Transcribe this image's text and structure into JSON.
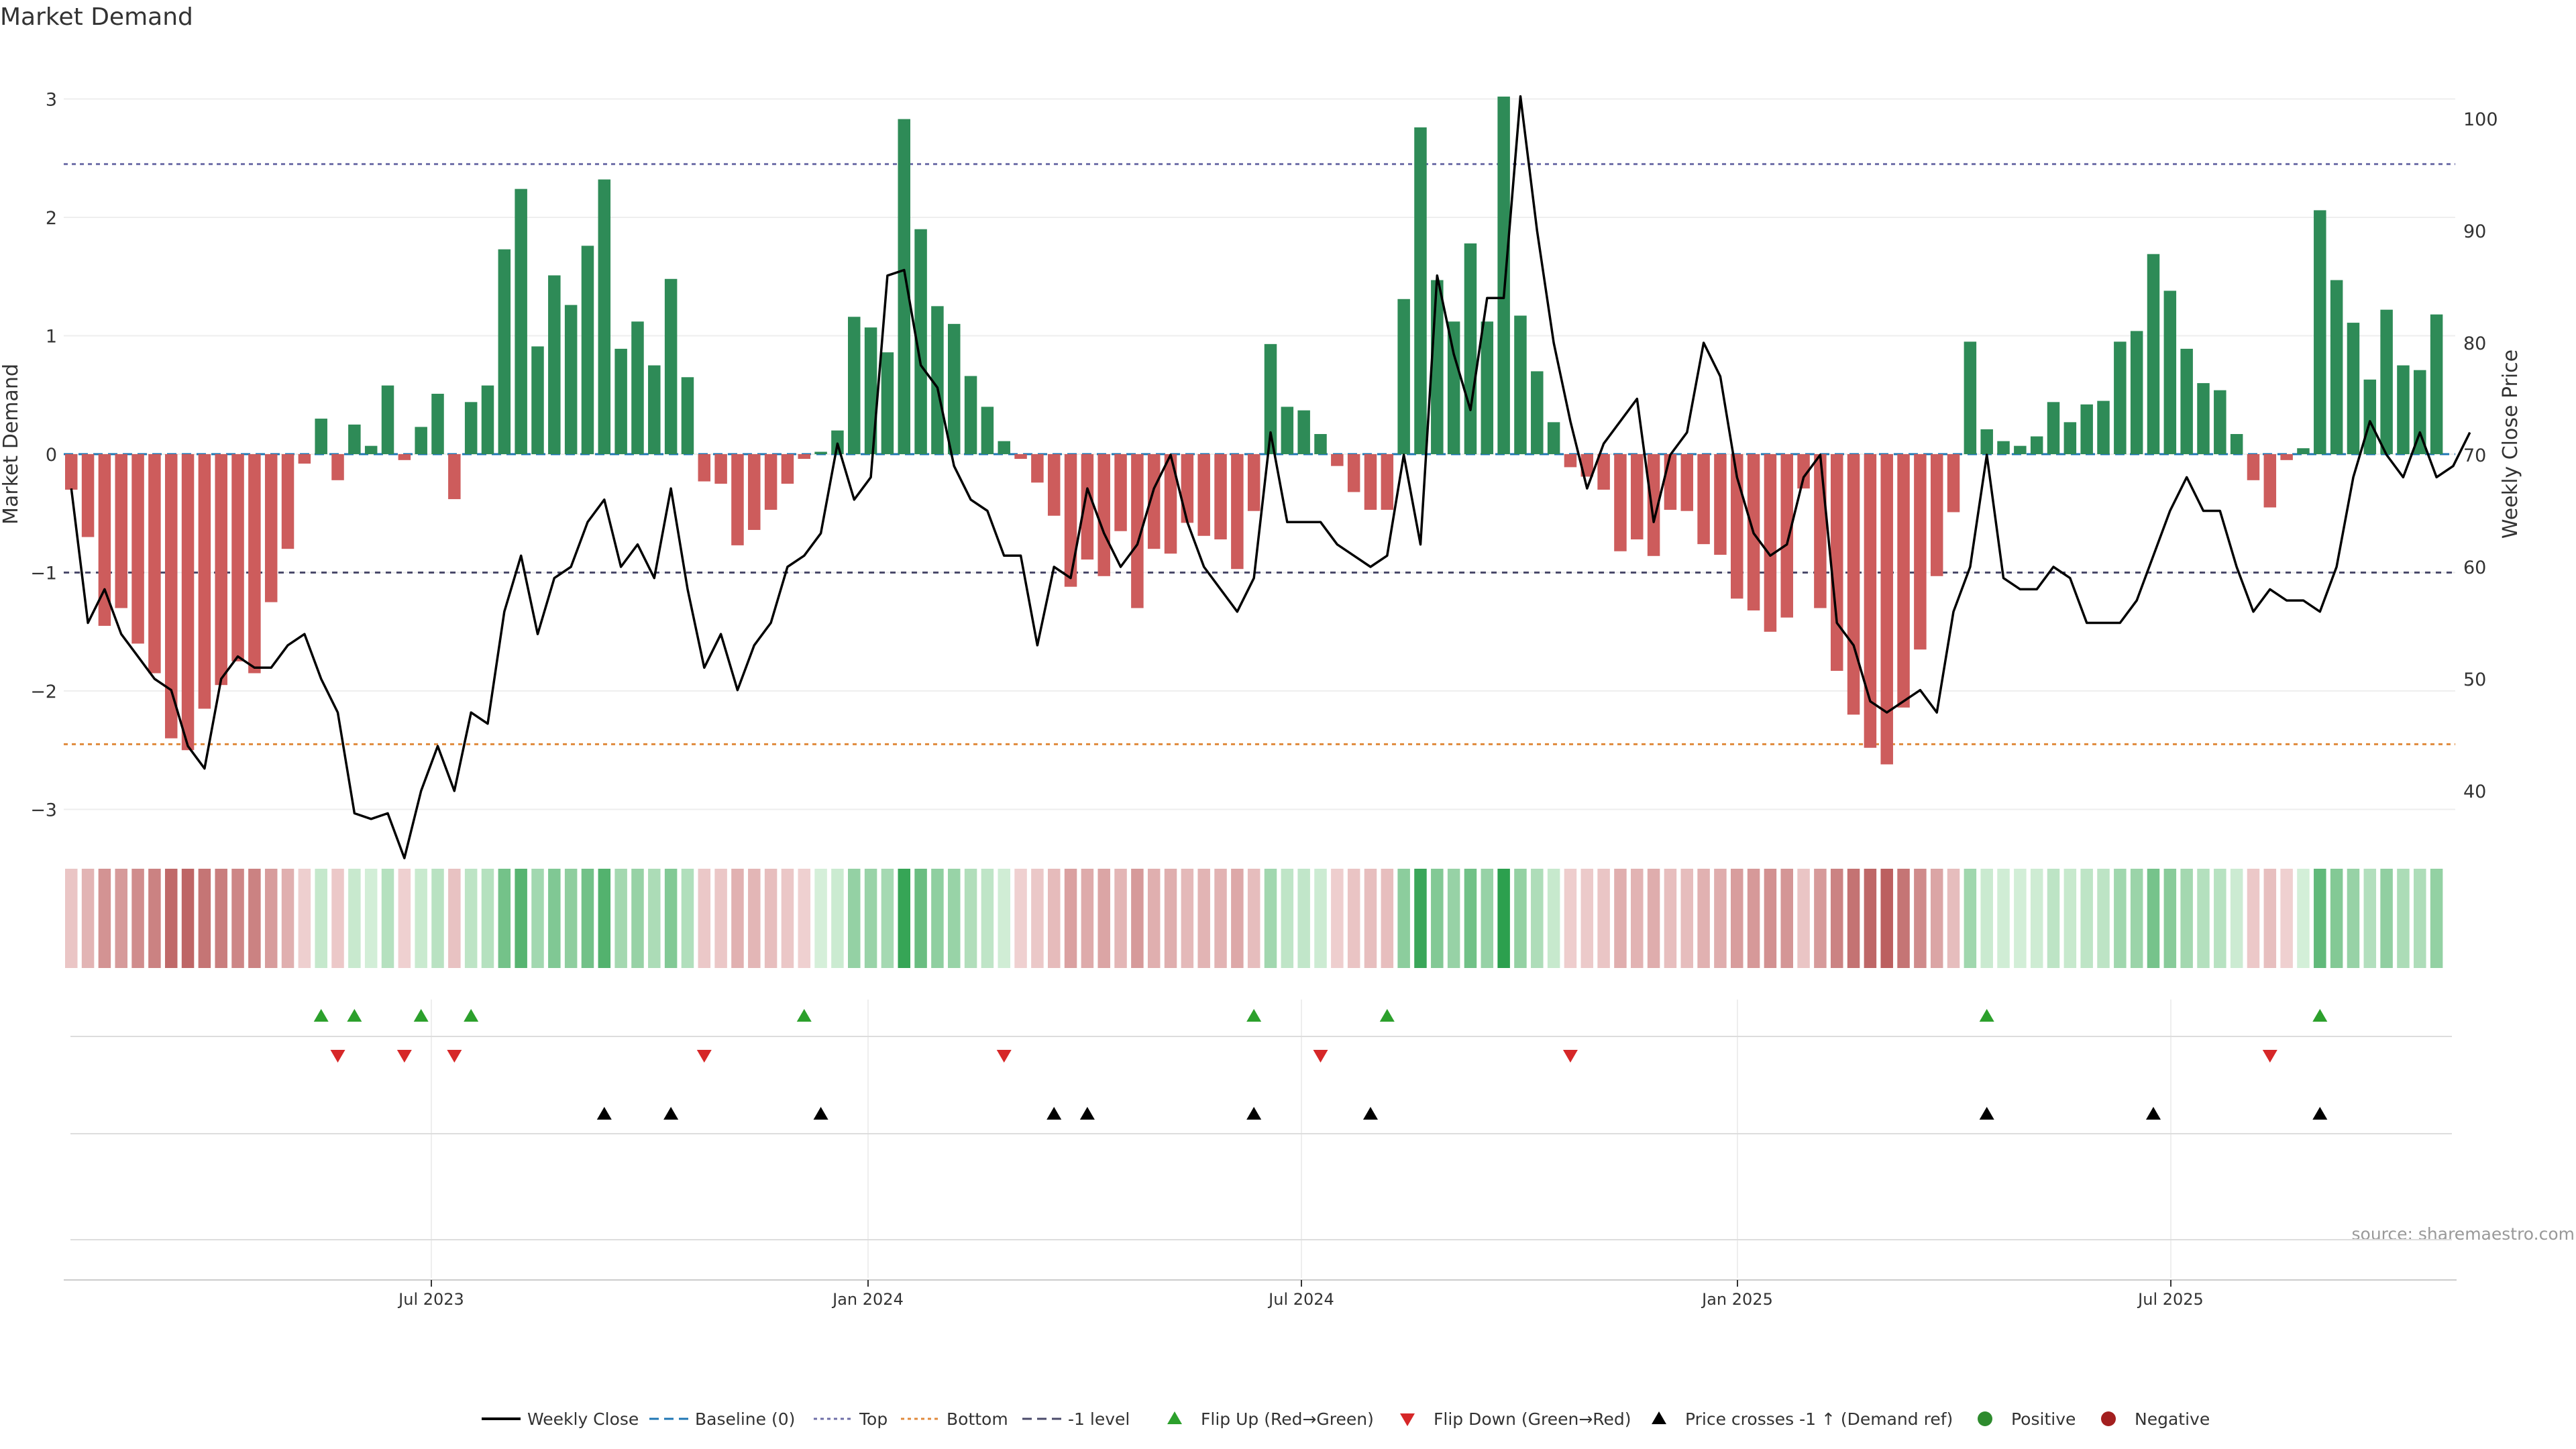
{
  "chart_data": {
    "type": "bar",
    "title": "Market Demand",
    "ylabel": "Market Demand",
    "y2label": "Weekly Close Price",
    "ylim": [
      -3.2,
      3.2
    ],
    "y2lim": [
      36.5,
      104.5
    ],
    "yticks": [
      3,
      2,
      1,
      0,
      -1,
      -2,
      -3
    ],
    "y2ticks": [
      100,
      90,
      80,
      70,
      60,
      50,
      40
    ],
    "x_date_ticks": [
      "Jul 2023",
      "Jan 2024",
      "Jul 2024",
      "Jan 2025",
      "Jul 2025"
    ],
    "source": "source: sharemaestro.com",
    "reference_lines": {
      "top": 2.45,
      "bottom": -2.45,
      "minus_one": -1,
      "baseline": 0
    },
    "legend": [
      {
        "label": "Weekly Close",
        "kind": "line",
        "color": "#000000"
      },
      {
        "label": "Baseline (0)",
        "kind": "dashed",
        "color": "#1f77b4"
      },
      {
        "label": "Top",
        "kind": "dotted",
        "color": "#6f6fa8"
      },
      {
        "label": "Bottom",
        "kind": "dotted",
        "color": "#e08a3c"
      },
      {
        "label": "-1 level",
        "kind": "dashed",
        "color": "#4a4a6a"
      },
      {
        "label": "Flip Up (Red→Green)",
        "kind": "tri-up",
        "color": "#2ca02c"
      },
      {
        "label": "Flip Down (Green→Red)",
        "kind": "tri-down",
        "color": "#d62728"
      },
      {
        "label": "Price crosses -1 ↑ (Demand ref)",
        "kind": "tri-up",
        "color": "#000000"
      },
      {
        "label": "Positive",
        "kind": "dot",
        "color": "#2e8b2e"
      },
      {
        "label": "Negative",
        "kind": "dot",
        "color": "#a31f1f"
      }
    ],
    "colors": {
      "positive": "#2e8b57",
      "negative": "#cd5c5c",
      "price": "#000000"
    },
    "demand": [
      -0.3,
      -0.7,
      -1.45,
      -1.3,
      -1.6,
      -1.85,
      -2.4,
      -2.5,
      -2.15,
      -1.95,
      -1.75,
      -1.85,
      -1.25,
      -0.8,
      -0.08,
      0.3,
      -0.22,
      0.25,
      0.07,
      0.58,
      -0.05,
      0.23,
      0.51,
      -0.38,
      0.44,
      0.58,
      1.73,
      2.24,
      0.91,
      1.51,
      1.26,
      1.76,
      2.32,
      0.89,
      1.12,
      0.75,
      1.48,
      0.65,
      -0.23,
      -0.25,
      -0.77,
      -0.64,
      -0.47,
      -0.25,
      -0.04,
      0.02,
      0.2,
      1.16,
      1.07,
      0.86,
      2.83,
      1.9,
      1.25,
      1.1,
      0.66,
      0.4,
      0.11,
      -0.04,
      -0.24,
      -0.52,
      -1.12,
      -0.89,
      -1.03,
      -0.65,
      -1.3,
      -0.8,
      -0.84,
      -0.58,
      -0.69,
      -0.72,
      -0.97,
      -0.48,
      0.93,
      0.4,
      0.37,
      0.17,
      -0.1,
      -0.32,
      -0.47,
      -0.47,
      1.31,
      2.76,
      1.47,
      1.12,
      1.78,
      1.12,
      3.02,
      1.17,
      0.7,
      0.27,
      -0.11,
      -0.19,
      -0.3,
      -0.82,
      -0.72,
      -0.86,
      -0.47,
      -0.48,
      -0.76,
      -0.85,
      -1.22,
      -1.32,
      -1.5,
      -1.38,
      -0.29,
      -1.3,
      -1.83,
      -2.2,
      -2.48,
      -2.62,
      -2.14,
      -1.65,
      -1.03,
      -0.49,
      0.95,
      0.21,
      0.11,
      0.07,
      0.15,
      0.44,
      0.27,
      0.42,
      0.45,
      0.95,
      1.04,
      1.69,
      1.38,
      0.89,
      0.6,
      0.54,
      0.17,
      -0.22,
      -0.45,
      -0.05,
      0.05,
      2.06,
      1.47,
      1.11,
      0.63,
      1.22,
      0.75,
      0.71,
      1.18
    ],
    "price": [
      67,
      55,
      58,
      54,
      52,
      50,
      49,
      44,
      42,
      50,
      52,
      51,
      51,
      53,
      54,
      50,
      47,
      38,
      37.5,
      38,
      34,
      40,
      44,
      40,
      47,
      46,
      56,
      61,
      54,
      59,
      60,
      64,
      66,
      60,
      62,
      59,
      67,
      58,
      51,
      54,
      49,
      53,
      55,
      60,
      61,
      63,
      71,
      66,
      68,
      86,
      86.5,
      78,
      76,
      69,
      66,
      65,
      61,
      61,
      53,
      60,
      59,
      67,
      63,
      60,
      62,
      67,
      70,
      64,
      60,
      58,
      56,
      59,
      72,
      64,
      64,
      64,
      62,
      61,
      60,
      61,
      70,
      62,
      86,
      79,
      74,
      84,
      84,
      102,
      90,
      80,
      73,
      67,
      71,
      73,
      75,
      64,
      70,
      72,
      80,
      77,
      68,
      63,
      61,
      62,
      68,
      70,
      55,
      53,
      48,
      47,
      48,
      49,
      47,
      56,
      60,
      70,
      59,
      58,
      58,
      60,
      59,
      55,
      55,
      55,
      57,
      61,
      65,
      68,
      65,
      65,
      60,
      56,
      58,
      57,
      57,
      56,
      60,
      68,
      73,
      70,
      68,
      72,
      68,
      69,
      72
    ],
    "rows": {
      "flip_up": [
        15,
        17,
        21,
        24,
        44,
        71,
        79,
        115,
        135
      ],
      "flip_down": [
        16,
        20,
        23,
        38,
        56,
        75,
        90,
        132
      ],
      "price_cross": [
        32,
        36,
        45,
        59,
        61,
        71,
        78,
        115,
        125,
        135
      ]
    }
  }
}
